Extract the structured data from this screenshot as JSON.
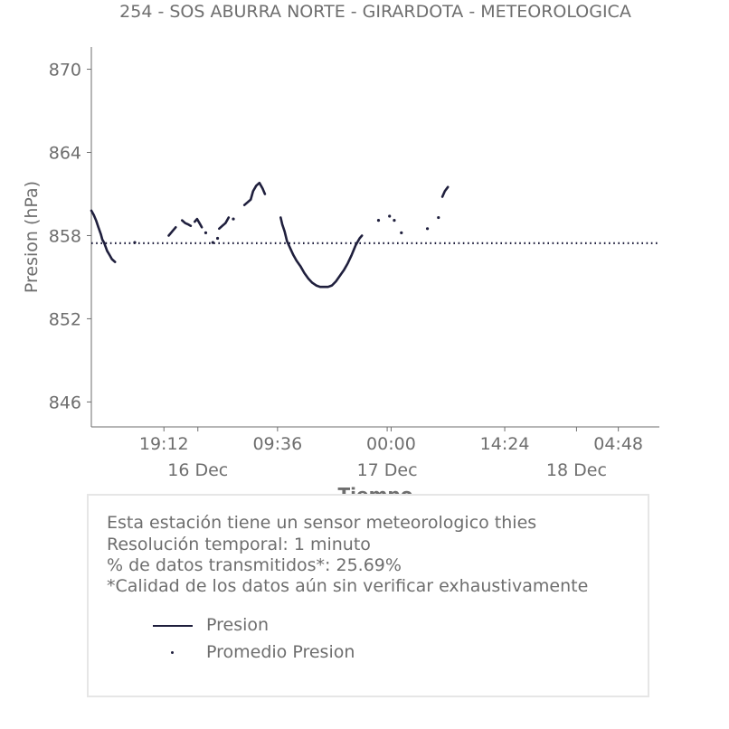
{
  "chart_data": {
    "type": "line",
    "title": "254 - SOS ABURRA NORTE - GIRARDOTA - METEOROLOGICA",
    "xlabel": "Tiempo",
    "ylabel": "Presion (hPa)",
    "ylim": [
      844.2,
      871.6
    ],
    "xlim_hours": [
      0,
      72
    ],
    "yticks": [
      870,
      864,
      858,
      852,
      846
    ],
    "xticks_time": [
      {
        "h": 9.2,
        "label": "19:12"
      },
      {
        "h": 23.6,
        "label": "09:36"
      },
      {
        "h": 38.0,
        "label": "00:00"
      },
      {
        "h": 52.4,
        "label": "14:24"
      },
      {
        "h": 66.8,
        "label": "04:48"
      }
    ],
    "xticks_day": [
      {
        "h": 13.5,
        "label": "16 Dec"
      },
      {
        "h": 37.5,
        "label": "17 Dec"
      },
      {
        "h": 61.5,
        "label": "18 Dec"
      }
    ],
    "average": 857.45,
    "series": [
      {
        "name": "Presion",
        "color": "#1f1f3d",
        "segments": [
          [
            [
              0.0,
              859.8
            ],
            [
              0.3,
              859.5
            ],
            [
              0.6,
              859.1
            ],
            [
              0.9,
              858.6
            ],
            [
              1.2,
              858.1
            ],
            [
              1.4,
              857.7
            ],
            [
              1.6,
              857.5
            ],
            [
              1.8,
              857.2
            ],
            [
              2.0,
              856.9
            ],
            [
              2.3,
              856.6
            ],
            [
              2.6,
              856.3
            ],
            [
              3.0,
              856.1
            ]
          ],
          [
            [
              9.8,
              858.0
            ],
            [
              10.1,
              858.2
            ],
            [
              10.4,
              858.4
            ],
            [
              10.7,
              858.6
            ]
          ],
          [
            [
              11.5,
              859.1
            ],
            [
              11.9,
              858.9
            ],
            [
              12.3,
              858.8
            ],
            [
              12.6,
              858.7
            ]
          ],
          [
            [
              13.1,
              859.0
            ],
            [
              13.4,
              859.2
            ],
            [
              13.8,
              858.8
            ],
            [
              14.0,
              858.6
            ]
          ],
          [
            [
              16.2,
              858.5
            ],
            [
              16.6,
              858.7
            ],
            [
              17.0,
              858.9
            ],
            [
              17.4,
              859.3
            ]
          ],
          [
            [
              19.4,
              860.2
            ],
            [
              19.8,
              860.4
            ],
            [
              20.2,
              860.6
            ],
            [
              20.5,
              861.2
            ],
            [
              20.9,
              861.6
            ],
            [
              21.3,
              861.8
            ],
            [
              21.7,
              861.4
            ],
            [
              22.0,
              861.0
            ]
          ],
          [
            [
              24.0,
              859.3
            ],
            [
              24.2,
              858.8
            ],
            [
              24.5,
              858.3
            ],
            [
              24.8,
              857.6
            ],
            [
              25.2,
              857.1
            ],
            [
              25.6,
              856.6
            ],
            [
              26.0,
              856.2
            ],
            [
              26.5,
              855.8
            ],
            [
              27.0,
              855.3
            ],
            [
              27.5,
              854.9
            ],
            [
              28.0,
              854.6
            ],
            [
              28.5,
              854.4
            ],
            [
              29.0,
              854.3
            ],
            [
              29.5,
              854.3
            ],
            [
              30.0,
              854.3
            ],
            [
              30.5,
              854.4
            ],
            [
              31.0,
              854.7
            ],
            [
              31.5,
              855.1
            ],
            [
              32.0,
              855.5
            ],
            [
              32.5,
              856.0
            ],
            [
              33.0,
              856.6
            ],
            [
              33.5,
              857.3
            ],
            [
              34.0,
              857.8
            ],
            [
              34.3,
              858.0
            ]
          ],
          [
            [
              44.5,
              860.8
            ],
            [
              44.8,
              861.2
            ],
            [
              45.2,
              861.5
            ]
          ]
        ],
        "points": [
          [
            5.5,
            857.5
          ],
          [
            14.5,
            858.2
          ],
          [
            15.4,
            857.5
          ],
          [
            16.0,
            857.8
          ],
          [
            18.0,
            859.2
          ],
          [
            36.4,
            859.1
          ],
          [
            37.8,
            859.4
          ],
          [
            38.4,
            859.1
          ],
          [
            39.3,
            858.2
          ],
          [
            42.6,
            858.5
          ],
          [
            44.0,
            859.3
          ]
        ]
      }
    ]
  },
  "info": {
    "line1": "Esta estación tiene un sensor meteorologico thies",
    "line2": "Resolución temporal: 1 minuto",
    "line3": "% de datos transmitidos*: 25.69%",
    "line4": "*Calidad de los datos aún sin verificar exhaustivamente"
  },
  "legend": {
    "series_label": "Presion",
    "average_label": "Promedio Presion"
  },
  "colors": {
    "series": "#1f1f3d",
    "axis": "#6e6e6e",
    "text": "#6e6e6e",
    "box_border": "#e6e6e6"
  }
}
